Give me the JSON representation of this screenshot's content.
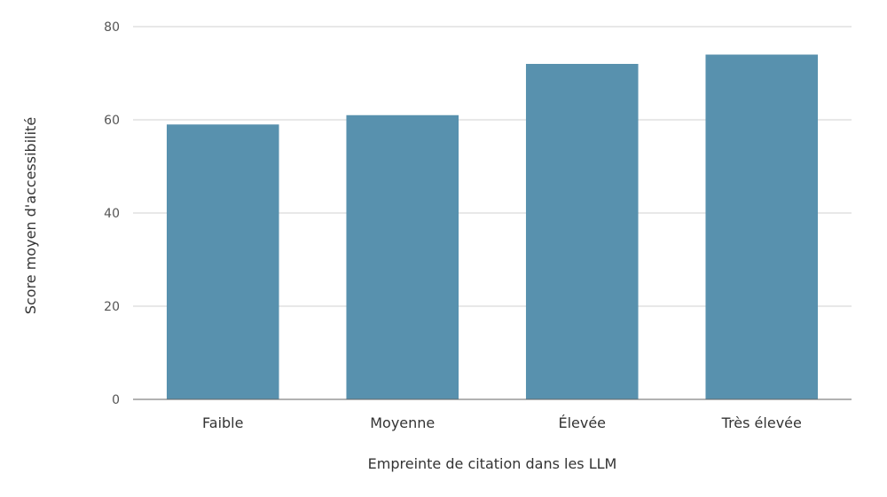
{
  "chart_data": {
    "type": "bar",
    "categories": [
      "Faible",
      "Moyenne",
      "Élevée",
      "Très élevée"
    ],
    "values": [
      59,
      61,
      72,
      74
    ],
    "xlabel": "Empreinte de citation dans les LLM",
    "ylabel": "Score moyen d'accessibilité",
    "ylim": [
      0,
      80
    ],
    "yticks": [
      0,
      20,
      40,
      60,
      80
    ],
    "grid": true,
    "bar_color": "#5891ae"
  }
}
